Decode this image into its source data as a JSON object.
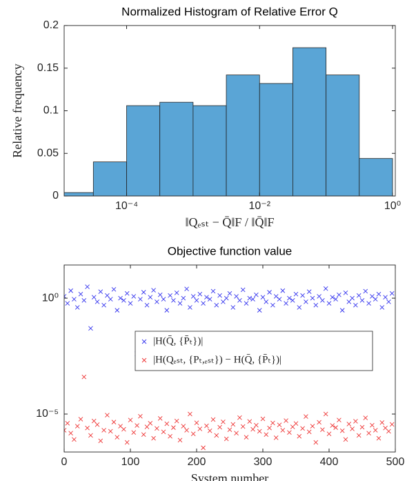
{
  "chart_data": [
    {
      "type": "histogram",
      "title": "Normalized Histogram of Relative Error Q",
      "xlabel": "‖Qₑₛₜ − Q̄‖F / ‖Q̄‖F",
      "ylabel": "Relative frequency",
      "bins": [
        1e-05,
        3.16e-05,
        0.0001,
        0.000316,
        0.001,
        0.00316,
        0.01,
        0.0316,
        0.1,
        0.316,
        1
      ],
      "values": [
        0.004,
        0.04,
        0.106,
        0.11,
        0.106,
        0.142,
        0.132,
        0.174,
        0.142,
        0.044
      ],
      "color": "#5aa5d6",
      "xlog": true,
      "xlim": [
        1.15e-05,
        1.1
      ],
      "xticks": [
        {
          "value": 0.0001,
          "label": "10⁻⁴"
        },
        {
          "value": 0.01,
          "label": "10⁻²"
        },
        {
          "value": 1,
          "label": "10⁰"
        }
      ],
      "ylim": [
        0,
        0.2
      ],
      "yticks": [
        0,
        0.05,
        0.1,
        0.15,
        0.2
      ]
    },
    {
      "type": "scatter",
      "title": "Objective function value",
      "xlabel": "System number",
      "ylog": true,
      "xlim": [
        0,
        500
      ],
      "xticks": [
        0,
        100,
        200,
        300,
        400,
        500
      ],
      "ylim": [
        2.3e-07,
        27
      ],
      "yticks": [
        {
          "value": 1e-05,
          "label": "10⁻⁵"
        },
        {
          "value": 1,
          "label": "10⁰"
        }
      ],
      "legend": "center",
      "x": [
        0,
        5,
        10,
        15,
        20,
        25,
        30,
        35,
        40,
        45,
        50,
        55,
        60,
        65,
        70,
        75,
        80,
        85,
        90,
        95,
        100,
        105,
        110,
        115,
        120,
        125,
        130,
        135,
        140,
        145,
        150,
        155,
        160,
        165,
        170,
        175,
        180,
        185,
        190,
        195,
        200,
        205,
        210,
        215,
        220,
        225,
        230,
        235,
        240,
        245,
        250,
        255,
        260,
        265,
        270,
        275,
        280,
        285,
        290,
        295,
        300,
        305,
        310,
        315,
        320,
        325,
        330,
        335,
        340,
        345,
        350,
        355,
        360,
        365,
        370,
        375,
        380,
        385,
        390,
        395,
        400,
        405,
        410,
        415,
        420,
        425,
        430,
        435,
        440,
        445,
        450,
        455,
        460,
        465,
        470,
        475,
        480,
        485,
        490,
        495
      ],
      "series": [
        {
          "name": "|H(Q̄, {P̄ₜ})|",
          "color": "#3333ee",
          "values": [
            1.2,
            0.6,
            2.1,
            0.9,
            0.4,
            1.5,
            0.8,
            3.1,
            0.05,
            1.1,
            0.7,
            1.9,
            0.5,
            1.3,
            0.9,
            2.4,
            0.3,
            1.0,
            0.8,
            1.6,
            0.6,
            1.2,
            0.004,
            0.9,
            1.8,
            0.5,
            1.1,
            2.2,
            0.7,
            1.4,
            0.9,
            0.3,
            1.3,
            0.8,
            1.7,
            0.6,
            1.0,
            2.5,
            0.4,
            1.2,
            0.8,
            1.5,
            0.6,
            1.1,
            0.9,
            2.0,
            0.5,
            1.3,
            0.7,
            1.0,
            1.6,
            0.4,
            1.2,
            0.8,
            2.3,
            0.6,
            1.0,
            0.9,
            1.4,
            0.3,
            1.1,
            0.7,
            1.8,
            0.5,
            1.2,
            0.9,
            2.1,
            0.6,
            1.0,
            0.8,
            1.5,
            0.4,
            1.3,
            0.7,
            1.9,
            1.0,
            0.5,
            1.2,
            0.8,
            2.6,
            0.6,
            1.1,
            0.9,
            1.4,
            0.3,
            1.7,
            0.7,
            1.0,
            0.5,
            1.3,
            0.8,
            2.0,
            0.6,
            1.2,
            0.9,
            1.5,
            0.4,
            1.1,
            0.7,
            1.6
          ]
        },
        {
          "name": "|H(Qₑₛₜ, {Pₜ,ₑₛₜ}) − H(Q̄, {P̄ₜ})|",
          "color": "#ee3333",
          "values": [
            2e-06,
            4e-06,
            1.5e-06,
            8e-07,
            3e-06,
            6e-06,
            0.0004,
            2.5e-06,
            1.2e-06,
            5e-06,
            3.5e-06,
            7e-07,
            2e-06,
            9e-06,
            1.8e-06,
            4.5e-06,
            1e-06,
            3e-06,
            2.2e-06,
            6e-07,
            5.5e-06,
            1.6e-06,
            3.2e-06,
            8e-06,
            1.3e-06,
            2.8e-06,
            4e-06,
            9e-07,
            2.4e-06,
            6.5e-06,
            1.7e-06,
            3.8e-06,
            1.1e-06,
            2.6e-06,
            5e-06,
            7.5e-07,
            3e-06,
            2e-06,
            1e-05,
            1.4e-06,
            4.2e-06,
            2.3e-06,
            3.5e-07,
            3.1e-06,
            1.9e-06,
            5.8e-06,
            1.2e-06,
            2.7e-06,
            4.6e-06,
            8.5e-07,
            2.1e-06,
            3.6e-06,
            1.5e-06,
            7e-06,
            2.9e-06,
            1e-06,
            4.8e-06,
            2.2e-06,
            3.3e-06,
            1.8e-06,
            6.2e-06,
            1.3e-06,
            2.5e-06,
            4.1e-06,
            9.5e-07,
            3.4e-06,
            2e-06,
            5.2e-06,
            1.6e-06,
            2.8e-06,
            3.9e-06,
            1.1e-06,
            2.4e-06,
            7.8e-06,
            1.7e-06,
            3e-06,
            6e-07,
            4.4e-06,
            2.1e-06,
            1e-05,
            1.4e-06,
            3.2e-06,
            2.6e-06,
            5.5e-06,
            1.9e-06,
            8e-07,
            3.7e-06,
            2.3e-06,
            4.9e-06,
            1.2e-06,
            2.7e-06,
            6.8e-06,
            1.5e-06,
            3.3e-06,
            2e-06,
            9e-07,
            4.3e-06,
            2.5e-06,
            1.8e-06,
            3.6e-06
          ]
        }
      ]
    }
  ]
}
